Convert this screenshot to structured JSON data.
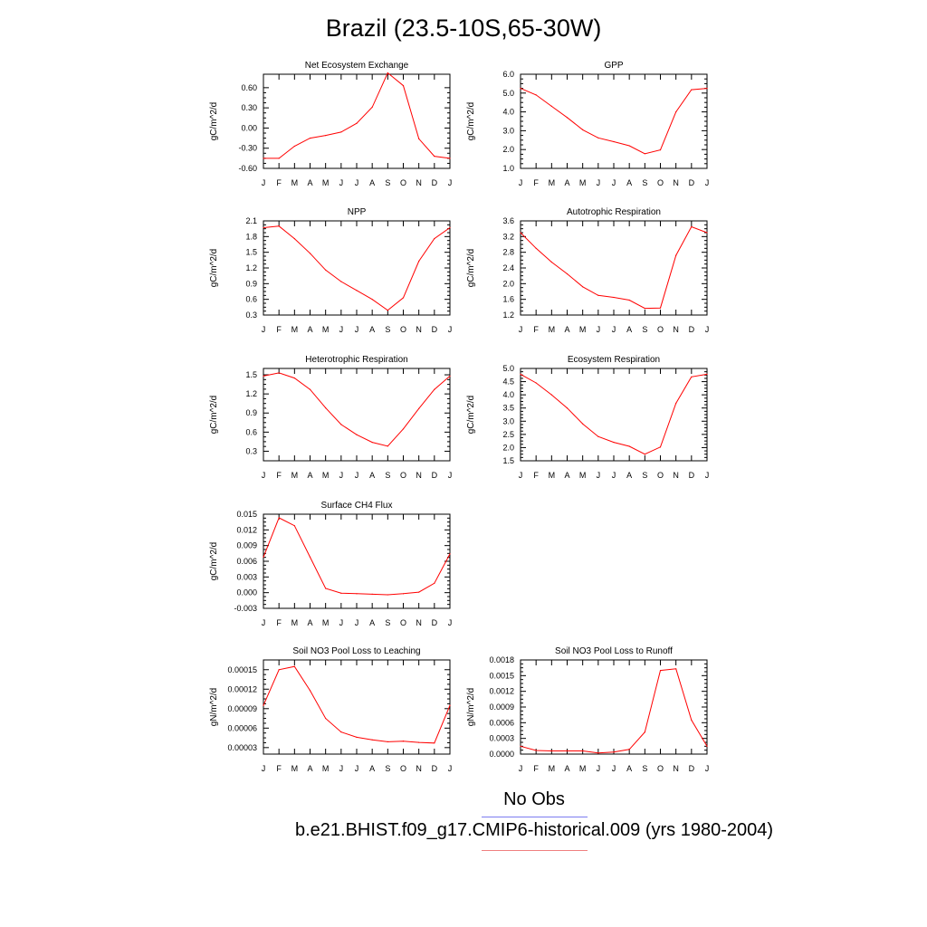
{
  "title": "Brazil (23.5-10S,65-30W)",
  "months": [
    "J",
    "F",
    "M",
    "A",
    "M",
    "J",
    "J",
    "A",
    "S",
    "O",
    "N",
    "D",
    "J"
  ],
  "legend": {
    "obs_label": "No Obs",
    "model_label": "b.e21.BHIST.f09_g17.CMIP6-historical.009 (yrs 1980-2004)",
    "obs_color": "#7d7df0",
    "model_color": "#f08080",
    "line_color": "#ff0000"
  },
  "chart_data": [
    {
      "type": "line",
      "title": "Net Ecosystem Exchange",
      "ylabel": "gC/m^2/d",
      "ylim": [
        -0.6,
        0.8
      ],
      "yticks": [
        "0.60",
        "0.30",
        "0.00",
        "-0.30",
        "-0.60"
      ],
      "values": [
        -0.45,
        -0.45,
        -0.27,
        -0.15,
        -0.11,
        -0.06,
        0.07,
        0.31,
        0.82,
        0.63,
        -0.16,
        -0.42,
        -0.45
      ]
    },
    {
      "type": "line",
      "title": "GPP",
      "ylabel": "gC/m^2/d",
      "ylim": [
        1.0,
        6.0
      ],
      "yticks": [
        "6.0",
        "5.0",
        "4.0",
        "3.0",
        "2.0",
        "1.0"
      ],
      "values": [
        5.25,
        4.9,
        4.3,
        3.7,
        3.05,
        2.62,
        2.42,
        2.2,
        1.78,
        1.98,
        4.0,
        5.18,
        5.25
      ]
    },
    {
      "type": "line",
      "title": "NPP",
      "ylabel": "gC/m^2/d",
      "ylim": [
        0.3,
        2.1
      ],
      "yticks": [
        "2.1",
        "1.8",
        "1.5",
        "1.2",
        "0.9",
        "0.6",
        "0.3"
      ],
      "values": [
        1.97,
        2.0,
        1.76,
        1.48,
        1.16,
        0.94,
        0.77,
        0.6,
        0.39,
        0.63,
        1.33,
        1.76,
        1.97
      ]
    },
    {
      "type": "line",
      "title": "Autotrophic Respiration",
      "ylabel": "gC/m^2/d",
      "ylim": [
        1.2,
        3.6
      ],
      "yticks": [
        "3.6",
        "3.2",
        "2.8",
        "2.4",
        "2.0",
        "1.6",
        "1.2"
      ],
      "values": [
        3.3,
        2.9,
        2.55,
        2.25,
        1.92,
        1.7,
        1.65,
        1.58,
        1.37,
        1.38,
        2.72,
        3.45,
        3.3
      ]
    },
    {
      "type": "line",
      "title": "Heterotrophic Respiration",
      "ylabel": "gC/m^2/d",
      "ylim": [
        0.15,
        1.6
      ],
      "yticks": [
        "1.5",
        "1.2",
        "0.9",
        "0.6",
        "0.3"
      ],
      "values": [
        1.48,
        1.53,
        1.45,
        1.27,
        0.98,
        0.72,
        0.56,
        0.44,
        0.38,
        0.65,
        0.97,
        1.27,
        1.48
      ]
    },
    {
      "type": "line",
      "title": "Ecosystem Respiration",
      "ylabel": "gC/m^2/d",
      "ylim": [
        1.5,
        5.0
      ],
      "yticks": [
        "5.0",
        "4.5",
        "4.0",
        "3.5",
        "3.0",
        "2.5",
        "2.0",
        "1.5"
      ],
      "values": [
        4.78,
        4.45,
        4.0,
        3.5,
        2.9,
        2.42,
        2.2,
        2.05,
        1.75,
        2.02,
        3.68,
        4.68,
        4.78
      ]
    },
    {
      "type": "line",
      "title": "Surface CH4 Flux",
      "ylabel": "gC/m^2/d",
      "ylim": [
        -0.003,
        0.015
      ],
      "yticks": [
        "0.015",
        "0.012",
        "0.009",
        "0.006",
        "0.003",
        "0.000",
        "-0.003"
      ],
      "values": [
        0.0068,
        0.0143,
        0.0128,
        0.0068,
        0.0008,
        -0.0001,
        -0.0002,
        -0.0003,
        -0.0004,
        -0.0002,
        0.0001,
        0.0018,
        0.0074
      ]
    },
    {
      "type": "line",
      "title": "Soil NO3 Pool Loss to Leaching",
      "ylabel": "gN/m^2/d",
      "ylim": [
        2e-05,
        0.000165
      ],
      "yticks": [
        "0.00015",
        "0.00012",
        "0.00009",
        "0.00006",
        "0.00003"
      ],
      "values": [
        9.5e-05,
        0.00015,
        0.000155,
        0.000118,
        7.5e-05,
        5.4e-05,
        4.6e-05,
        4.2e-05,
        3.9e-05,
        4e-05,
        3.8e-05,
        3.7e-05,
        9.5e-05
      ]
    },
    {
      "type": "line",
      "title": "Soil NO3 Pool Loss to Runoff",
      "ylabel": "gN/m^2/d",
      "ylim": [
        0,
        0.0018
      ],
      "yticks": [
        "0.0018",
        "0.0015",
        "0.0012",
        "0.0009",
        "0.0006",
        "0.0003",
        "0.0000"
      ],
      "values": [
        0.00015,
        7e-05,
        6e-05,
        6e-05,
        6e-05,
        2e-05,
        4e-05,
        9e-05,
        0.00042,
        0.0016,
        0.00163,
        0.00065,
        0.00015
      ]
    }
  ]
}
